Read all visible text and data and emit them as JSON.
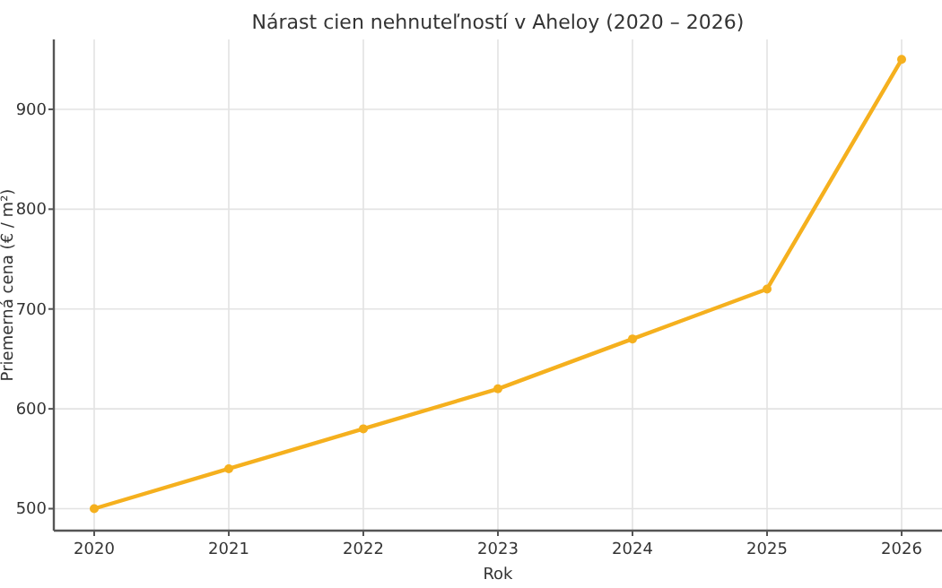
{
  "chart_data": {
    "type": "line",
    "title": "Nárast cien nehnuteľností v Aheloy (2020 – 2026)",
    "xlabel": "Rok",
    "ylabel": "Priemerná cena (€ / m²)",
    "x": [
      2020,
      2021,
      2022,
      2023,
      2024,
      2025,
      2026
    ],
    "series": [
      {
        "color": "#f5b01e",
        "values": [
          500,
          540,
          580,
          620,
          670,
          720,
          950
        ]
      }
    ],
    "xlim": [
      2019.7,
      2026.3
    ],
    "xticks": [
      2020,
      2021,
      2022,
      2023,
      2024,
      2025,
      2026
    ],
    "ylim": [
      478,
      970
    ],
    "yticks": [
      500,
      600,
      700,
      800,
      900
    ],
    "grid": true,
    "marker": "circle",
    "line_style": "solid"
  }
}
